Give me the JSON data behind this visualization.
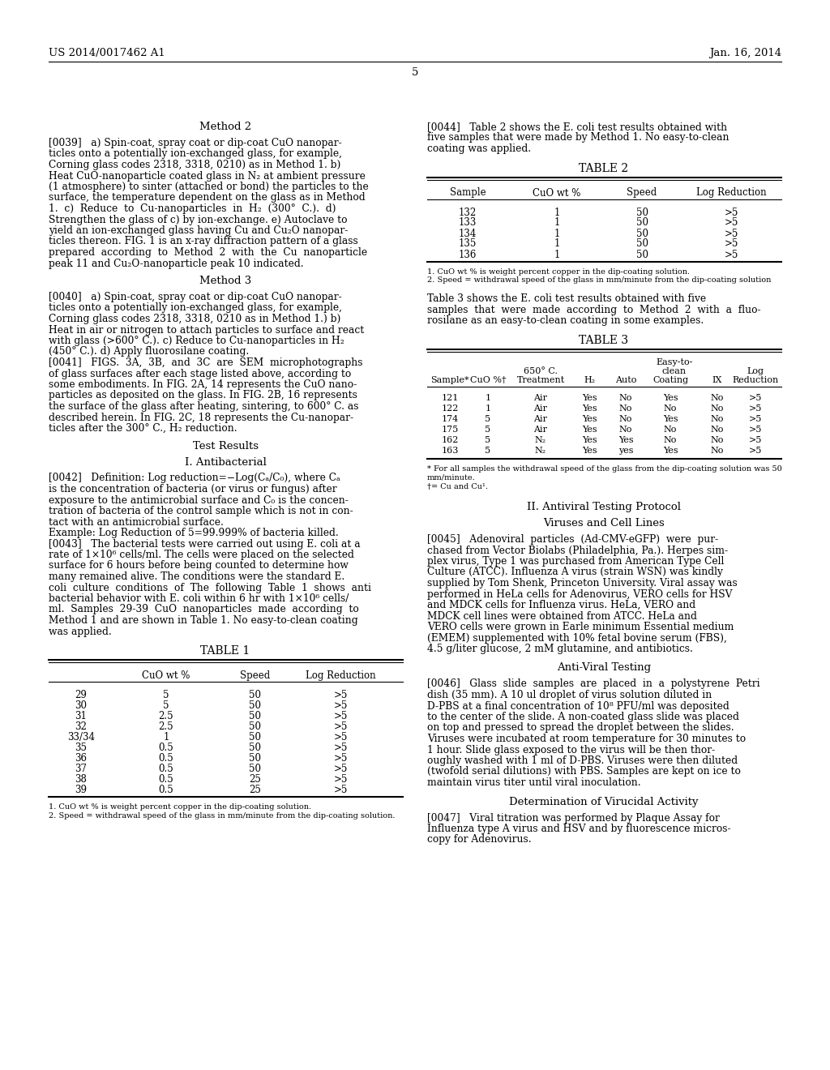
{
  "page_header_left": "US 2014/0017462 A1",
  "page_header_right": "Jan. 16, 2014",
  "page_number": "5",
  "table1": {
    "title": "TABLE 1",
    "headers": [
      "",
      "CuO wt %",
      "Speed",
      "Log Reduction"
    ],
    "rows": [
      [
        "29",
        "5",
        "50",
        ">5"
      ],
      [
        "30",
        "5",
        "50",
        ">5"
      ],
      [
        "31",
        "2.5",
        "50",
        ">5"
      ],
      [
        "32",
        "2.5",
        "50",
        ">5"
      ],
      [
        "33/34",
        "1",
        "50",
        ">5"
      ],
      [
        "35",
        "0.5",
        "50",
        ">5"
      ],
      [
        "36",
        "0.5",
        "50",
        ">5"
      ],
      [
        "37",
        "0.5",
        "50",
        ">5"
      ],
      [
        "38",
        "0.5",
        "25",
        ">5"
      ],
      [
        "39",
        "0.5",
        "25",
        ">5"
      ]
    ],
    "footnotes": [
      "1. CuO wt % is weight percent copper in the dip-coating solution.",
      "2. Speed = withdrawal speed of the glass in mm/minute from the dip-coating solution."
    ]
  },
  "table2": {
    "title": "TABLE 2",
    "headers": [
      "Sample",
      "CuO wt %",
      "Speed",
      "Log Reduction"
    ],
    "rows": [
      [
        "132",
        "1",
        "50",
        ">5"
      ],
      [
        "133",
        "1",
        "50",
        ">5"
      ],
      [
        "134",
        "1",
        "50",
        ">5"
      ],
      [
        "135",
        "1",
        "50",
        ">5"
      ],
      [
        "136",
        "1",
        "50",
        ">5"
      ]
    ],
    "footnotes": [
      "1. CuO wt % is weight percent copper in the dip-coating solution.",
      "2. Speed = withdrawal speed of the glass in mm/minute from the dip-coating solution"
    ]
  },
  "table3": {
    "title": "TABLE 3",
    "col_headers": [
      "Sample*",
      "CuO %†",
      "Treatment",
      "H₂",
      "Auto",
      "Coating",
      "IX",
      "Reduction"
    ],
    "rows": [
      [
        "121",
        "1",
        "Air",
        "Yes",
        "No",
        "Yes",
        "No",
        ">5"
      ],
      [
        "122",
        "1",
        "Air",
        "Yes",
        "No",
        "No",
        "No",
        ">5"
      ],
      [
        "174",
        "5",
        "Air",
        "Yes",
        "No",
        "Yes",
        "No",
        ">5"
      ],
      [
        "175",
        "5",
        "Air",
        "Yes",
        "No",
        "No",
        "No",
        ">5"
      ],
      [
        "162",
        "5",
        "N₂",
        "Yes",
        "Yes",
        "No",
        "No",
        ">5"
      ],
      [
        "163",
        "5",
        "N₂",
        "Yes",
        "yes",
        "Yes",
        "No",
        ">5"
      ]
    ],
    "footnotes": [
      "* For all samples the withdrawal speed of the glass from the dip-coating solution was 50",
      "mm/minute.",
      "†= Cu and Cu¹."
    ]
  }
}
